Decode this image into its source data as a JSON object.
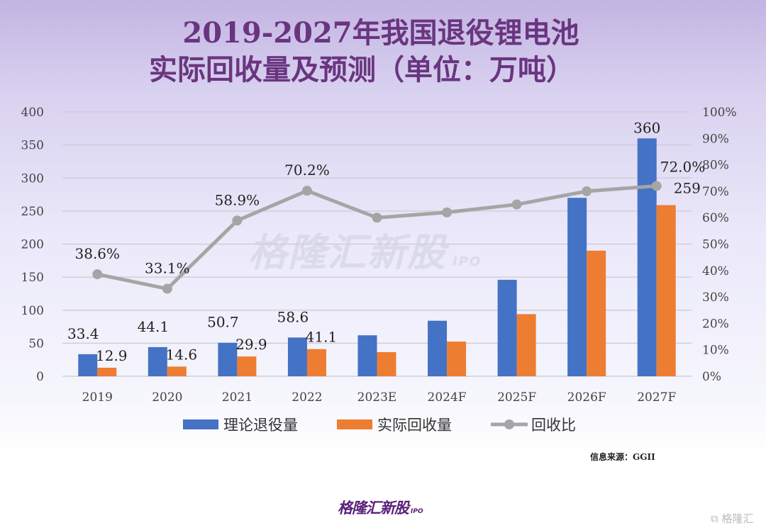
{
  "title_line1": "2019-2027年我国退役锂电池",
  "title_line2": "实际回收量及预测（单位：万吨）",
  "watermark": "格隆汇新股",
  "watermark_sub": "IPO",
  "source": "信息来源：GGII",
  "footer_logo": "格隆汇新股",
  "footer_logo_sub": "IPO",
  "corner_logo": "格隆汇",
  "colors": {
    "blue": "#4472c4",
    "orange": "#ed7d31",
    "gray": "#a5a5a5",
    "title": "#6a3580"
  },
  "chart_data": {
    "type": "bar+line",
    "categories": [
      "2019",
      "2020",
      "2021",
      "2022",
      "2023E",
      "2024F",
      "2025F",
      "2026F",
      "2027F"
    ],
    "series": [
      {
        "name": "理论退役量",
        "type": "bar",
        "axis": "left",
        "color": "#4472c4",
        "values": [
          33.4,
          44.1,
          50.7,
          58.6,
          62,
          84,
          146,
          270,
          360
        ],
        "labels": [
          "33.4",
          "44.1",
          "50.7",
          "58.6",
          "",
          "",
          "",
          "",
          "360"
        ]
      },
      {
        "name": "实际回收量",
        "type": "bar",
        "axis": "left",
        "color": "#ed7d31",
        "values": [
          12.9,
          14.6,
          29.9,
          41.1,
          36.5,
          52.5,
          94,
          190,
          259
        ],
        "labels": [
          "12.9",
          "14.6",
          "29.9",
          "41.1",
          "",
          "",
          "",
          "",
          "259"
        ]
      },
      {
        "name": "回收比",
        "type": "line",
        "axis": "right",
        "color": "#a5a5a5",
        "values": [
          38.6,
          33.1,
          58.9,
          70.2,
          60,
          62,
          65,
          70,
          72.0
        ],
        "labels": [
          "38.6%",
          "33.1%",
          "58.9%",
          "70.2%",
          "",
          "",
          "",
          "",
          "72.0%"
        ]
      }
    ],
    "y_left": {
      "range": [
        0,
        400
      ],
      "ticks": [
        "0",
        "50",
        "100",
        "150",
        "200",
        "250",
        "300",
        "350",
        "400"
      ]
    },
    "y_right": {
      "range": [
        0,
        100
      ],
      "ticks": [
        "0%",
        "10%",
        "20%",
        "30%",
        "40%",
        "50%",
        "60%",
        "70%",
        "80%",
        "90%",
        "100%"
      ]
    },
    "grid": true,
    "legend_position": "bottom"
  }
}
